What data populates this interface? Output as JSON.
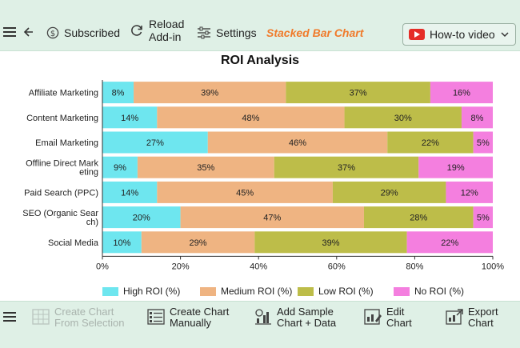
{
  "toolbar": {
    "subscribed_label": "Subscribed",
    "reload_label_line1": "Reload",
    "reload_label_line2": "Add-in",
    "settings_label": "Settings",
    "chart_type_label": "Stacked Bar Chart",
    "howto_label": "How-to video"
  },
  "bottom_toolbar": {
    "create_selection_line1": "Create Chart",
    "create_selection_line2": "From Selection",
    "create_manual_line1": "Create Chart",
    "create_manual_line2": "Manually",
    "add_sample_line1": "Add Sample",
    "add_sample_line2": "Chart + Data",
    "edit_line1": "Edit",
    "edit_line2": "Chart",
    "export_line1": "Export",
    "export_line2": "Chart"
  },
  "colors": {
    "accent": "#f07a2a",
    "toolbar_bg": "#dff0e6",
    "youtube_red": "#e52d27"
  },
  "icons": {
    "hamburger": "hamburger-icon",
    "back": "back-arrow-icon",
    "subscribed": "dollar-circle-icon",
    "reload": "reload-icon",
    "settings": "sliders-icon",
    "youtube": "youtube-icon",
    "dropdown": "chevron-down-icon"
  },
  "chart_data": {
    "type": "bar",
    "orientation": "horizontal",
    "stacked": "percent",
    "title": "ROI Analysis",
    "categories": [
      "Affiliate Marketing",
      "Content Marketing",
      "Email Marketing",
      "Offline Direct Marketing",
      "Paid Search (PPC)",
      "SEO (Organic Search)",
      "Social Media"
    ],
    "category_label_lines": [
      [
        "Affiliate Marketing"
      ],
      [
        "Content Marketing"
      ],
      [
        "Email Marketing"
      ],
      [
        "Offline Direct Mark",
        "eting"
      ],
      [
        "Paid Search (PPC)"
      ],
      [
        "SEO (Organic Sear",
        "ch)"
      ],
      [
        "Social Media"
      ]
    ],
    "series": [
      {
        "name": "High ROI (%)",
        "color": "#6ee6ef",
        "values": [
          8,
          14,
          27,
          9,
          14,
          20,
          10
        ]
      },
      {
        "name": "Medium ROI (%)",
        "color": "#efb482",
        "values": [
          39,
          48,
          46,
          35,
          45,
          47,
          29
        ]
      },
      {
        "name": "Low ROI (%)",
        "color": "#bdbd49",
        "values": [
          37,
          30,
          22,
          37,
          29,
          28,
          39
        ]
      },
      {
        "name": "No ROI (%)",
        "color": "#f47fdf",
        "values": [
          16,
          8,
          5,
          19,
          12,
          5,
          22
        ]
      }
    ],
    "xlim": [
      0,
      100
    ],
    "x_ticks": [
      "0%",
      "20%",
      "40%",
      "60%",
      "80%",
      "100%"
    ],
    "legend_position": "bottom",
    "grid": false
  }
}
